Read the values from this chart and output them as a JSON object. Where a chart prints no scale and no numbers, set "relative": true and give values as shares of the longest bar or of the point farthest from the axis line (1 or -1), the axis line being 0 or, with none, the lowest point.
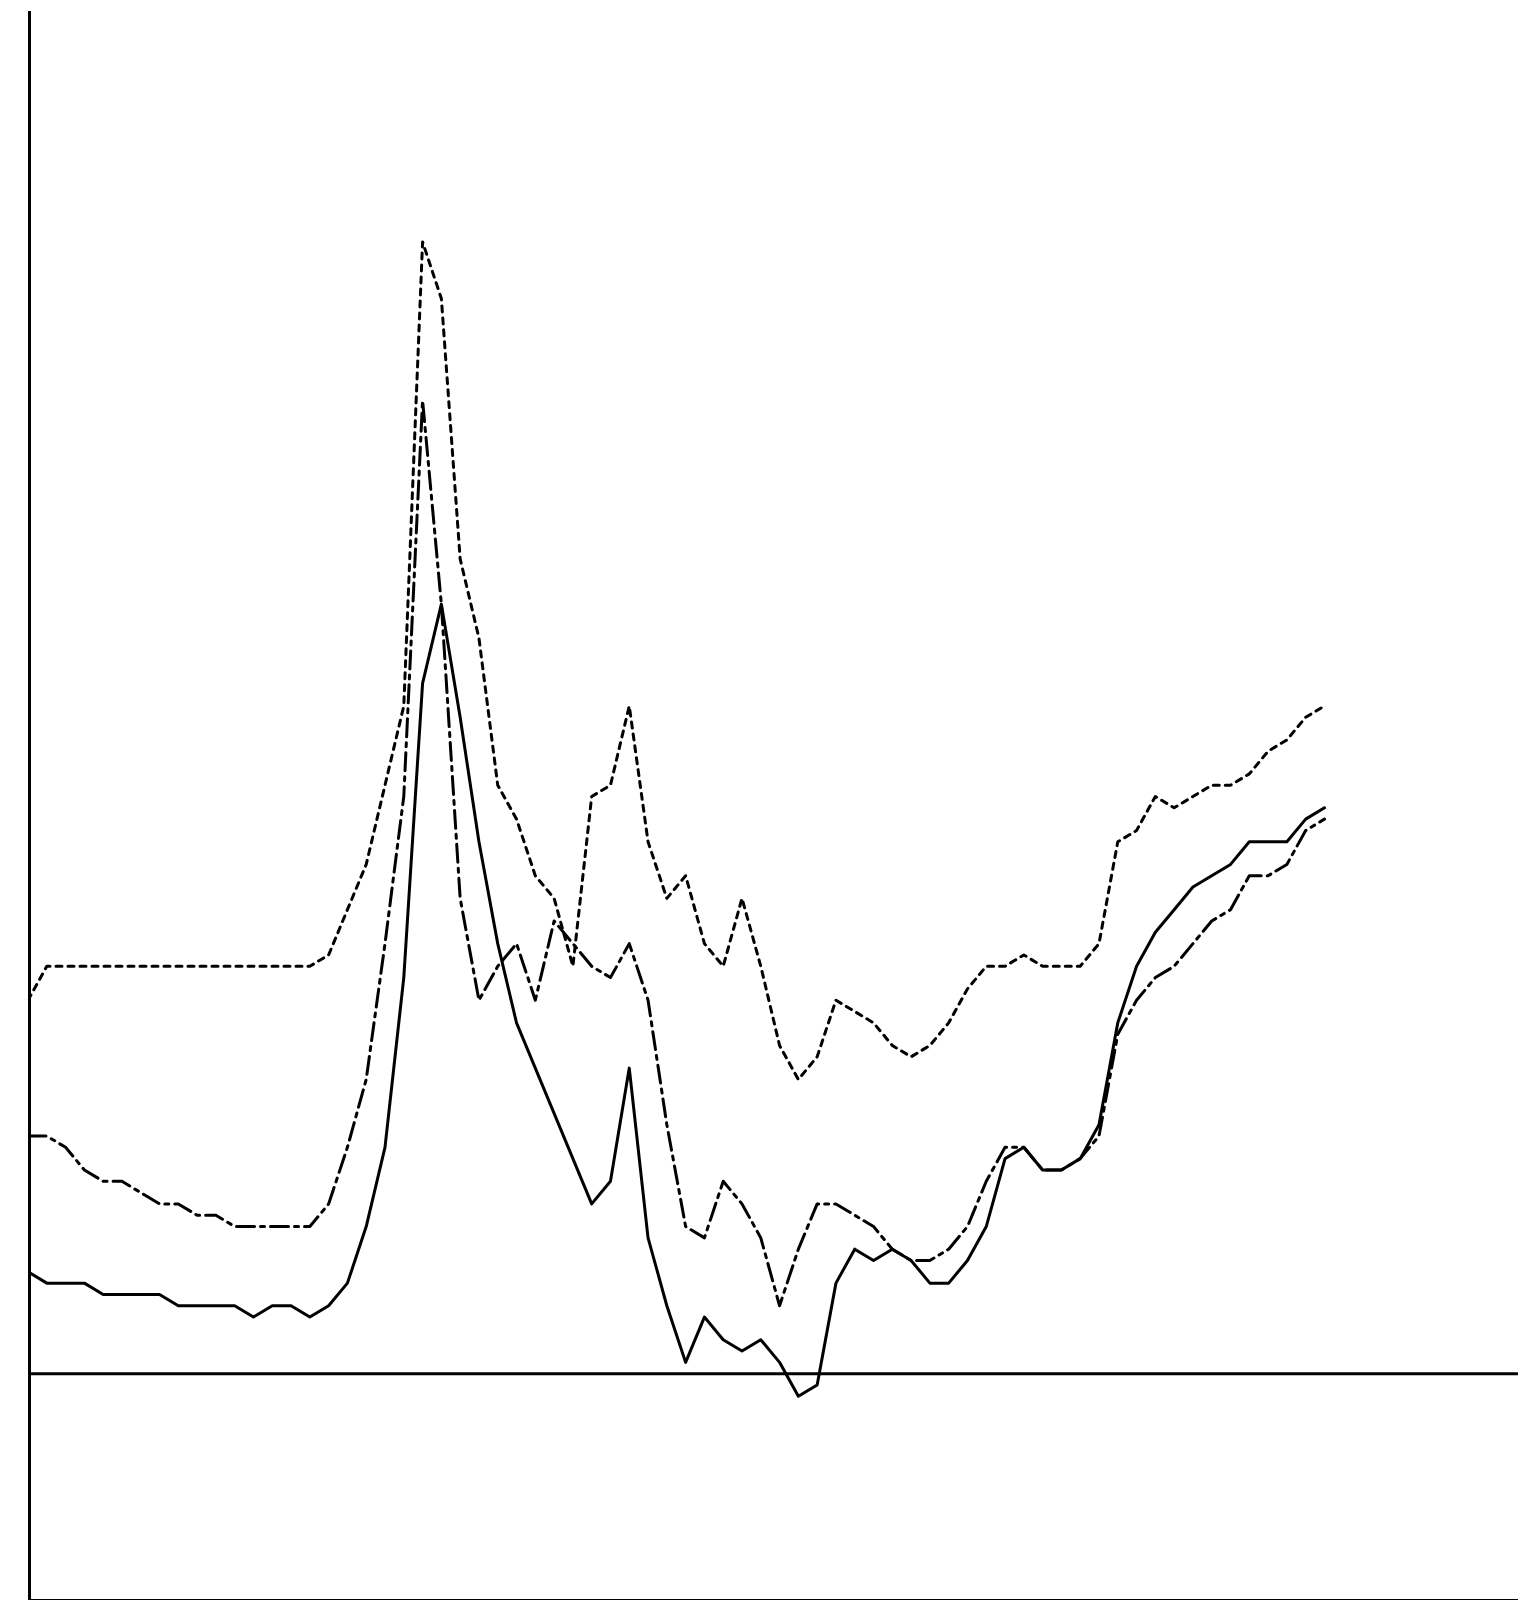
{
  "chart_data": {
    "type": "line",
    "relative": true,
    "grid": false,
    "categories": [
      null,
      null,
      null,
      null,
      null,
      null,
      null,
      null,
      null,
      null,
      null,
      null,
      null,
      null,
      null,
      null,
      null,
      null,
      null,
      null,
      null,
      null,
      null,
      null,
      null,
      null,
      null,
      null,
      null,
      null,
      null,
      null,
      null,
      null,
      null,
      null,
      null,
      null,
      null,
      null,
      null,
      null,
      null,
      null,
      null,
      null,
      null,
      null,
      null,
      null,
      null,
      null,
      null,
      null,
      null,
      null,
      null,
      null,
      null,
      null,
      null,
      null,
      null,
      null,
      null,
      null,
      null,
      null,
      null,
      null,
      null,
      null,
      null,
      null,
      null,
      null,
      null,
      null,
      null,
      null
    ],
    "series": [
      {
        "color": "#000000",
        "line_style": "solid",
        "values": [
          0.09,
          0.08,
          0.08,
          0.08,
          0.07,
          0.07,
          0.07,
          0.07,
          0.06,
          0.06,
          0.06,
          0.06,
          0.05,
          0.06,
          0.06,
          0.05,
          0.06,
          0.08,
          0.13,
          0.2,
          0.35,
          0.61,
          0.68,
          0.58,
          0.47,
          0.38,
          0.31,
          0.27,
          0.23,
          0.19,
          0.15,
          0.17,
          0.27,
          0.12,
          0.06,
          0.01,
          0.05,
          0.03,
          0.02,
          0.03,
          0.01,
          -0.02,
          -0.01,
          0.08,
          0.11,
          0.1,
          0.11,
          0.1,
          0.08,
          0.08,
          0.1,
          0.13,
          0.19,
          0.2,
          0.18,
          0.18,
          0.19,
          0.22,
          0.31,
          0.36,
          0.39,
          0.41,
          0.43,
          0.44,
          0.45,
          0.47,
          0.47,
          0.47,
          0.49,
          0.5,
          null,
          null,
          null,
          null,
          null,
          null,
          null,
          null,
          null,
          null
        ]
      },
      {
        "color": "#000000",
        "line_style": "dotted",
        "values": [
          0.33,
          0.36,
          0.36,
          0.36,
          0.36,
          0.36,
          0.36,
          0.36,
          0.36,
          0.36,
          0.36,
          0.36,
          0.36,
          0.36,
          0.36,
          0.36,
          0.37,
          0.41,
          0.45,
          0.52,
          0.59,
          1,
          0.95,
          0.72,
          0.65,
          0.52,
          0.49,
          0.44,
          0.42,
          0.36,
          0.51,
          0.52,
          0.59,
          0.47,
          0.42,
          0.44,
          0.38,
          0.36,
          0.42,
          0.36,
          0.29,
          0.26,
          0.28,
          0.33,
          0.32,
          0.31,
          0.29,
          0.28,
          0.29,
          0.31,
          0.34,
          0.36,
          0.36,
          0.37,
          0.36,
          0.36,
          0.36,
          0.38,
          0.47,
          0.48,
          0.51,
          0.5,
          0.51,
          0.52,
          0.52,
          0.53,
          0.55,
          0.56,
          0.58,
          0.59,
          null,
          null,
          null,
          null,
          null,
          null,
          null,
          null,
          null,
          null
        ]
      },
      {
        "color": "#000000",
        "line_style": "dashed",
        "values": [
          0.21,
          0.21,
          0.2,
          0.18,
          0.17,
          0.17,
          0.16,
          0.15,
          0.15,
          0.14,
          0.14,
          0.13,
          0.13,
          0.13,
          0.13,
          0.13,
          0.15,
          0.2,
          0.26,
          0.38,
          0.51,
          0.86,
          0.68,
          0.42,
          0.33,
          0.36,
          0.38,
          0.33,
          0.4,
          0.38,
          0.36,
          0.35,
          0.38,
          0.33,
          0.22,
          0.13,
          0.12,
          0.17,
          0.15,
          0.12,
          0.06,
          0.11,
          0.15,
          0.15,
          0.14,
          0.13,
          0.11,
          0.1,
          0.1,
          0.11,
          0.13,
          0.17,
          0.2,
          0.2,
          0.18,
          0.18,
          0.19,
          0.21,
          0.3,
          0.33,
          0.35,
          0.36,
          0.38,
          0.4,
          0.41,
          0.44,
          0.44,
          0.45,
          0.48,
          0.49,
          null,
          null,
          null,
          null,
          null,
          null,
          null,
          null,
          null,
          null
        ]
      }
    ]
  }
}
